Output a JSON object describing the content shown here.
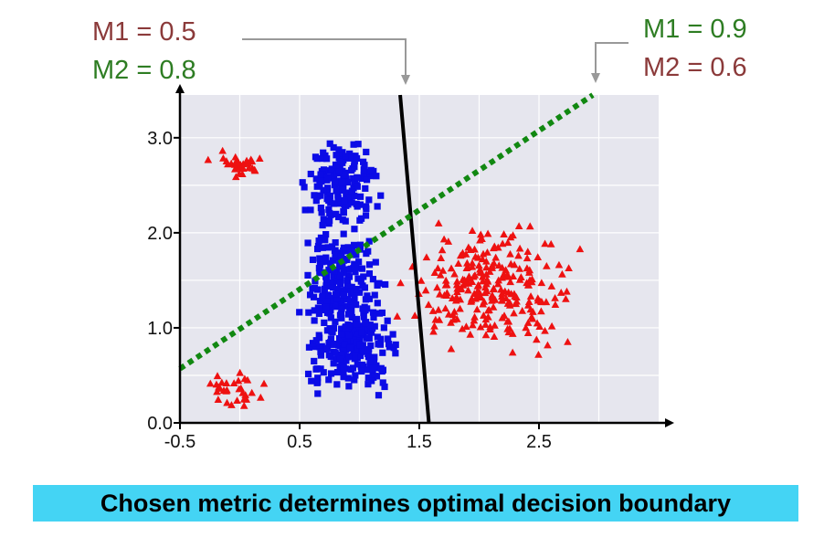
{
  "chart_data": {
    "type": "scatter",
    "xlim": [
      -0.5,
      3.5
    ],
    "ylim": [
      0,
      3.45
    ],
    "grid": true,
    "x_ticks": [
      -0.5,
      0.5,
      1.5,
      2.5
    ],
    "x_tick_labels": [
      "-0.5",
      "0.5",
      "1.5",
      "2.5"
    ],
    "y_ticks": [
      0,
      1.0,
      2.0,
      3.0
    ],
    "y_tick_labels": [
      "0.0",
      "1.0",
      "2.0",
      "3.0"
    ],
    "series": [
      {
        "marker": "triangle",
        "color": "#ee1111",
        "clusters": [
          {
            "center": [
              0.0,
              2.7
            ],
            "spread": [
              0.1,
              0.07
            ],
            "count": 30
          },
          {
            "center": [
              -0.05,
              0.35
            ],
            "spread": [
              0.11,
              0.08
            ],
            "count": 30
          },
          {
            "center": [
              2.1,
              1.4
            ],
            "spread": [
              0.3,
              0.27
            ],
            "count": 260
          }
        ]
      },
      {
        "marker": "square",
        "color": "#0b0be6",
        "clusters": [
          {
            "center": [
              0.85,
              2.5
            ],
            "spread": [
              0.13,
              0.22
            ],
            "count": 170
          },
          {
            "center": [
              0.85,
              1.5
            ],
            "spread": [
              0.14,
              0.25
            ],
            "count": 170
          },
          {
            "center": [
              0.95,
              0.82
            ],
            "spread": [
              0.17,
              0.2
            ],
            "count": 230
          }
        ]
      }
    ],
    "decision_boundaries": [
      {
        "style": "solid",
        "color": "#000000",
        "points": [
          [
            1.34,
            3.45
          ],
          [
            1.58,
            0.0
          ]
        ],
        "m1": "M1 = 0.5",
        "m2": "M2 = 0.8"
      },
      {
        "style": "dotted",
        "color": "#118811",
        "points": [
          [
            -0.5,
            0.57
          ],
          [
            2.95,
            3.45
          ]
        ],
        "m1": "M1 = 0.9",
        "m2": "M2 = 0.6"
      }
    ]
  },
  "colors": {
    "plot_bg": "#e6e6ee",
    "grid": "#ffffff",
    "m1_left": "#8b3a3a",
    "m2_left": "#2e7d23",
    "m1_right": "#2e7d23",
    "m2_right": "#8b3a3a",
    "leader": "#999999",
    "caption_bg": "#44d4f4"
  },
  "annotations": {
    "left_m1": "M1 = 0.5",
    "left_m2": "M2 = 0.8",
    "right_m1": "M1 = 0.9",
    "right_m2": "M2 = 0.6"
  },
  "caption": "Chosen metric determines optimal decision boundary"
}
